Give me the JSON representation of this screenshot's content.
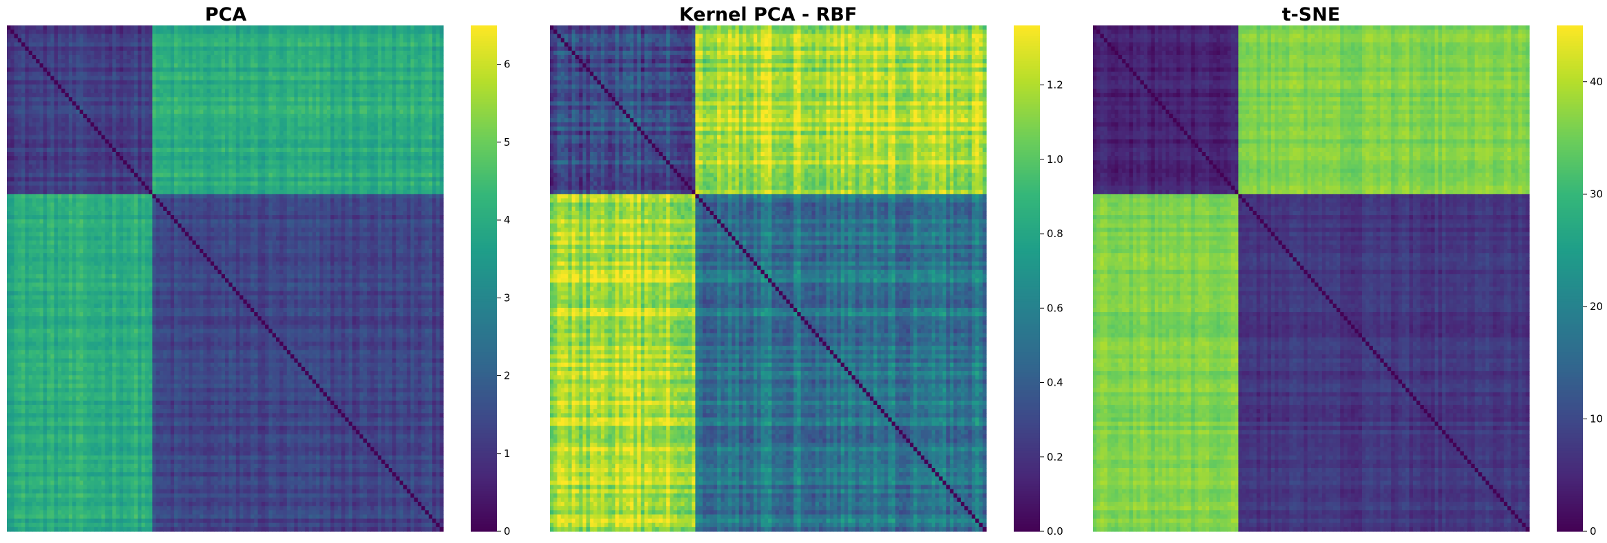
{
  "figure": {
    "colormap": "viridis",
    "colormap_stops": [
      "#440154",
      "#482878",
      "#3e4989",
      "#31688e",
      "#26828e",
      "#1f9e89",
      "#35b779",
      "#6ece58",
      "#b5de2b",
      "#fde725"
    ]
  },
  "chart_data": [
    {
      "type": "heatmap",
      "title": "PCA",
      "matrix_size": 120,
      "block_sizes": [
        40,
        80
      ],
      "block_means": [
        [
          1.2,
          4.0
        ],
        [
          4.0,
          1.3
        ]
      ],
      "diagonal_value": 0,
      "noise_level": 0.55,
      "value_range": [
        0,
        6.5
      ],
      "colorbar": {
        "ticks": [
          0,
          1,
          2,
          3,
          4,
          5,
          6
        ],
        "tick_labels": [
          "0",
          "1",
          "2",
          "3",
          "4",
          "5",
          "6"
        ]
      },
      "grid": false
    },
    {
      "type": "heatmap",
      "title": "Kernel PCA - RBF",
      "matrix_size": 120,
      "block_sizes": [
        40,
        80
      ],
      "block_means": [
        [
          0.3,
          1.2
        ],
        [
          1.2,
          0.55
        ]
      ],
      "diagonal_value": 0,
      "noise_level": 0.22,
      "value_range": [
        0,
        1.36
      ],
      "colorbar": {
        "ticks": [
          0,
          0.2,
          0.4,
          0.6,
          0.8,
          1.0,
          1.2
        ],
        "tick_labels": [
          "0.0",
          "0.2",
          "0.4",
          "0.6",
          "0.8",
          "1.0",
          "1.2"
        ]
      },
      "grid": false
    },
    {
      "type": "heatmap",
      "title": "t-SNE",
      "matrix_size": 120,
      "block_sizes": [
        40,
        80
      ],
      "block_means": [
        [
          4,
          36
        ],
        [
          36,
          7
        ]
      ],
      "diagonal_value": 0,
      "noise_level": 3,
      "value_range": [
        0,
        45
      ],
      "colorbar": {
        "ticks": [
          0,
          10,
          20,
          30,
          40
        ],
        "tick_labels": [
          "0",
          "10",
          "20",
          "30",
          "40"
        ]
      },
      "grid": false
    }
  ]
}
